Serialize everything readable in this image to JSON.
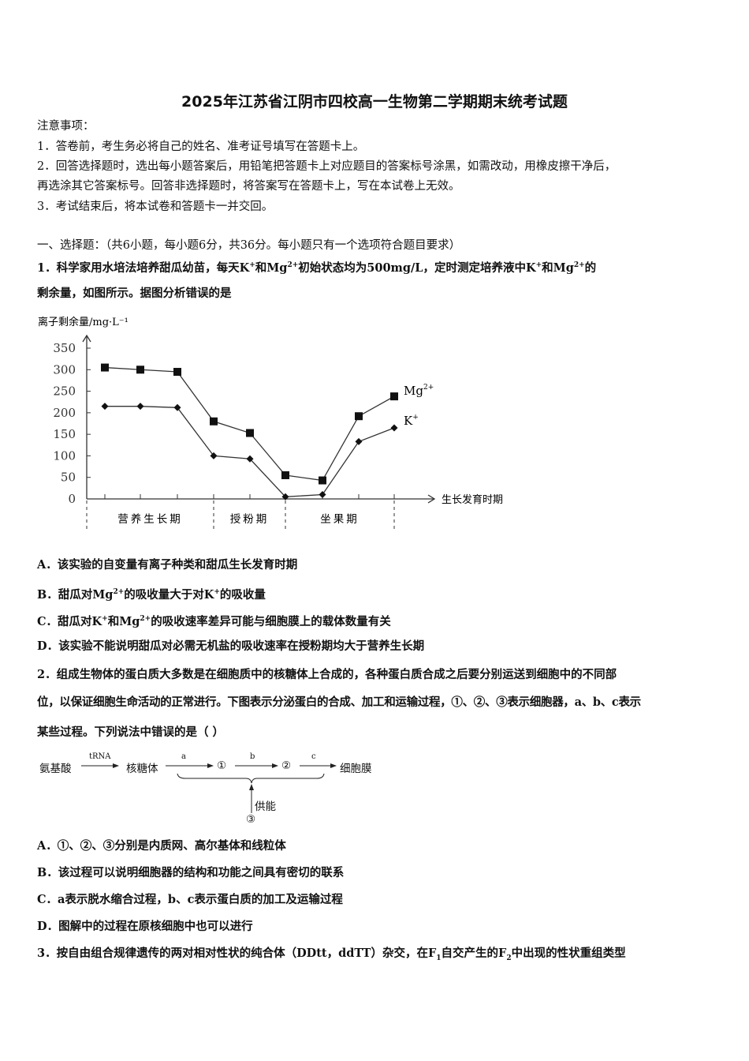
{
  "title": "2025年江苏省江阴市四校高一生物第二学期期末统考试题",
  "notice": {
    "heading": "注意事项：",
    "items": [
      "1．答卷前，考生务必将自己的姓名、准考证号填写在答题卡上。",
      "2．回答选择题时，选出每小题答案后，用铅笔把答题卡上对应题目的答案标号涂黑，如需改动，用橡皮擦干净后，",
      "再选涂其它答案标号。回答非选择题时，将答案写在答题卡上，写在本试卷上无效。",
      "3．考试结束后，将本试卷和答题卡一并交回。"
    ]
  },
  "section": "一、选择题：（共6小题，每小题6分，共36分。每小题只有一个选项符合题目要求）",
  "q1": {
    "stem1": [
      "1．科学家用水培法培养甜瓜幼苗，每天K",
      "+",
      "和Mg",
      "2+",
      "初始状态均为500mg/L，定时测定培养液中K",
      "+",
      "和Mg",
      "2+",
      "的"
    ],
    "stem2": "剩余量，如图所示。据图分析错误的是",
    "options": {
      "A": "A．该实验的自变量有离子种类和甜瓜生长发育时期",
      "B": [
        "B．甜瓜对Mg",
        "2+",
        "的吸收量大于对K",
        "+",
        "的吸收量"
      ],
      "C": [
        "C．甜瓜对K",
        "+",
        "和Mg",
        "2+",
        "的吸收速率差异可能与细胞膜上的载体数量有关"
      ],
      "D": "D．该实验不能说明甜瓜对必需无机盐的吸收速率在授粉期均大于营养生长期"
    }
  },
  "chart_data": {
    "type": "line",
    "ylabel": "离子剩余量/mg·L⁻¹",
    "xlabel": "生长发育时期",
    "ylim": [
      0,
      350
    ],
    "yticks": [
      "0",
      "50",
      "100",
      "150",
      "200",
      "250",
      "300",
      "350"
    ],
    "periods": [
      {
        "label": "营养生长期",
        "points": 3
      },
      {
        "label": "授粉期",
        "points": 2
      },
      {
        "label": "坐果期",
        "points": 4
      }
    ],
    "series": [
      {
        "name": "Mg2+",
        "label": "Mg",
        "sup": "2+",
        "marker": "square",
        "values": [
          305,
          300,
          295,
          180,
          153,
          55,
          43,
          192,
          238
        ]
      },
      {
        "name": "K+",
        "label": "K",
        "sup": "+",
        "marker": "diamond",
        "values": [
          215,
          215,
          212,
          100,
          93,
          5,
          10,
          133,
          165
        ]
      }
    ],
    "grid": false
  },
  "q2": {
    "line1": "2．组成生物体的蛋白质大多数是在细胞质中的核糖体上合成的，各种蛋白质合成之后要分别运送到细胞中的不同部",
    "line2": "位，以保证细胞生命活动的正常进行。下图表示分泌蛋白的合成、加工和运输过程，①、②、③表示细胞器，a、b、c表示",
    "line3": "某些过程。下列说法中错误的是（ ）",
    "diagram": {
      "n1": "氨基酸",
      "l1": "tRNA",
      "n2": "核糖体",
      "la": "a",
      "c1": "①",
      "lb": "b",
      "c2": "②",
      "lc": "c",
      "n3": "细胞膜",
      "energy": "供能",
      "c3": "③"
    },
    "options": {
      "A": "A．①、②、③分别是内质网、高尔基体和线粒体",
      "B": "B．该过程可以说明细胞器的结构和功能之间具有密切的联系",
      "C": "C．a表示脱水缩合过程，b、c表示蛋白质的加工及运输过程",
      "D": "D．图解中的过程在原核细胞中也可以进行"
    }
  },
  "q3": {
    "stem": [
      "3．按自由组合规律遗传的两对相对性状的纯合体（DDtt，ddTT）杂交，在F",
      "1",
      "自交产生的F",
      "2",
      "中出现的性状重组类型"
    ]
  }
}
